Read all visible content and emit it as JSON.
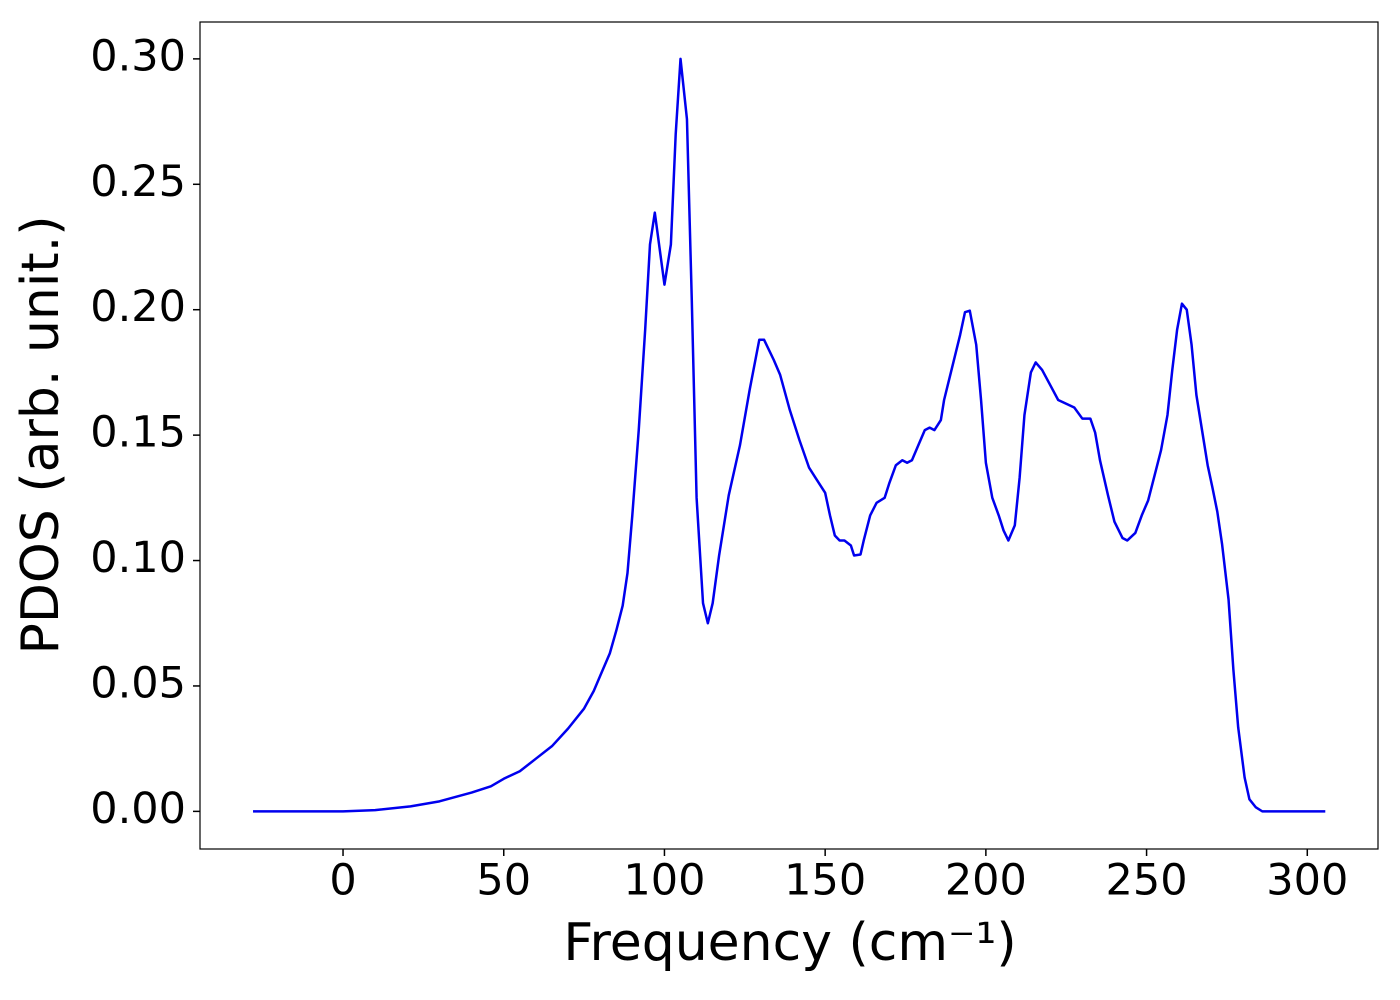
{
  "chart_data": {
    "type": "line",
    "xlabel": "Frequency (cm⁻¹)",
    "ylabel": "PDOS (arb. unit.)",
    "x": [
      -28,
      0,
      10,
      21,
      30,
      40,
      46,
      50,
      55,
      60,
      65,
      70,
      75,
      78,
      80,
      83,
      85,
      87,
      88.5,
      90,
      92,
      94,
      95.5,
      97,
      100,
      102,
      103.5,
      105,
      107,
      108.5,
      110,
      112,
      113.5,
      115,
      117,
      120,
      123.5,
      126.5,
      129.5,
      131,
      134,
      136,
      139,
      142,
      145,
      147,
      148.5,
      150,
      151.5,
      153,
      154.5,
      156,
      158,
      159,
      161,
      162,
      164,
      166,
      168.5,
      170,
      172,
      174,
      175.5,
      177,
      179,
      181,
      182.5,
      184,
      186,
      187,
      189.5,
      192,
      193.5,
      195,
      197,
      198.5,
      200,
      202,
      204,
      205.5,
      207,
      209,
      210.5,
      212,
      214,
      215.5,
      217.5,
      220,
      222.5,
      225,
      227.5,
      230,
      232.5,
      234,
      235.5,
      238,
      240,
      242.5,
      244,
      246.5,
      248.5,
      250.5,
      252.5,
      254.5,
      256.5,
      258,
      259.5,
      261,
      262.5,
      264,
      265.5,
      267.5,
      269,
      270.5,
      272,
      273.5,
      275.5,
      277,
      278.5,
      280.5,
      282,
      284,
      286,
      305.6
    ],
    "series": [
      {
        "name": "PDOS",
        "color": "#0000ee",
        "values": [
          0,
          0,
          0.0005,
          0.002,
          0.004,
          0.0075,
          0.01,
          0.013,
          0.016,
          0.021,
          0.026,
          0.033,
          0.041,
          0.048,
          0.054,
          0.063,
          0.072,
          0.082,
          0.095,
          0.118,
          0.152,
          0.192,
          0.226,
          0.2387,
          0.21,
          0.226,
          0.27,
          0.3,
          0.276,
          0.204,
          0.125,
          0.083,
          0.075,
          0.083,
          0.102,
          0.126,
          0.146,
          0.168,
          0.188,
          0.188,
          0.18,
          0.174,
          0.16,
          0.148,
          0.137,
          0.133,
          0.13,
          0.127,
          0.118,
          0.11,
          0.108,
          0.108,
          0.106,
          0.102,
          0.1024,
          0.108,
          0.118,
          0.123,
          0.125,
          0.131,
          0.138,
          0.14,
          0.139,
          0.14,
          0.146,
          0.152,
          0.153,
          0.152,
          0.156,
          0.164,
          0.177,
          0.19,
          0.199,
          0.1996,
          0.186,
          0.164,
          0.139,
          0.125,
          0.118,
          0.112,
          0.108,
          0.114,
          0.133,
          0.158,
          0.175,
          0.179,
          0.176,
          0.17,
          0.164,
          0.1625,
          0.161,
          0.1566,
          0.1566,
          0.151,
          0.14,
          0.126,
          0.1155,
          0.109,
          0.108,
          0.111,
          0.118,
          0.124,
          0.134,
          0.144,
          0.158,
          0.176,
          0.192,
          0.2024,
          0.2,
          0.186,
          0.166,
          0.15,
          0.138,
          0.129,
          0.1195,
          0.1064,
          0.0845,
          0.0566,
          0.0335,
          0.0135,
          0.0048,
          0.0016,
          0,
          0
        ]
      }
    ],
    "xlim": [
      -44.5,
      322
    ],
    "ylim": [
      -0.015,
      0.3147
    ],
    "xticks": [
      0,
      50,
      100,
      150,
      200,
      250,
      300
    ],
    "yticks": [
      {
        "value": 0,
        "label": "0.00"
      },
      {
        "value": 0.05,
        "label": "0.05"
      },
      {
        "value": 0.1,
        "label": "0.10"
      },
      {
        "value": 0.15,
        "label": "0.15"
      },
      {
        "value": 0.2,
        "label": "0.20"
      },
      {
        "value": 0.25,
        "label": "0.25"
      },
      {
        "value": 0.3,
        "label": "0.30"
      }
    ]
  }
}
